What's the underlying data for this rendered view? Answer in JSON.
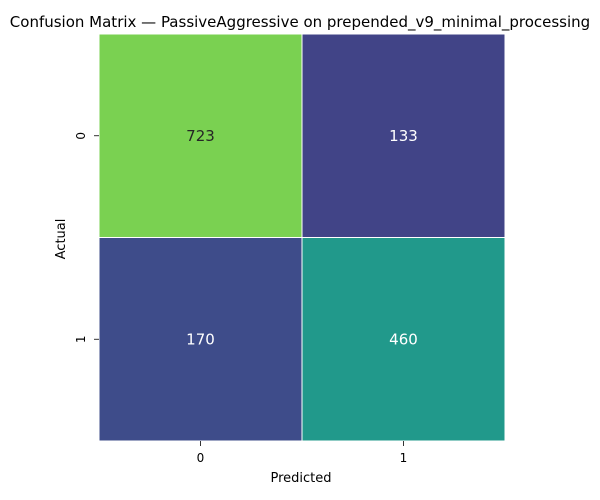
{
  "chart_data": {
    "type": "heatmap",
    "title": "Confusion Matrix — PassiveAggressive on prepended_v9_minimal_processing",
    "xlabel": "Predicted",
    "ylabel": "Actual",
    "x_categories": [
      "0",
      "1"
    ],
    "y_categories": [
      "0",
      "1"
    ],
    "values": [
      [
        723,
        133
      ],
      [
        170,
        460
      ]
    ],
    "cell_colors": [
      [
        "#7ad151",
        "#414487"
      ],
      [
        "#3e4c8a",
        "#21998b"
      ]
    ],
    "cell_text_colors": [
      [
        "#262626",
        "#ffffff"
      ],
      [
        "#ffffff",
        "#ffffff"
      ]
    ],
    "colorbar": false,
    "grid": false
  }
}
